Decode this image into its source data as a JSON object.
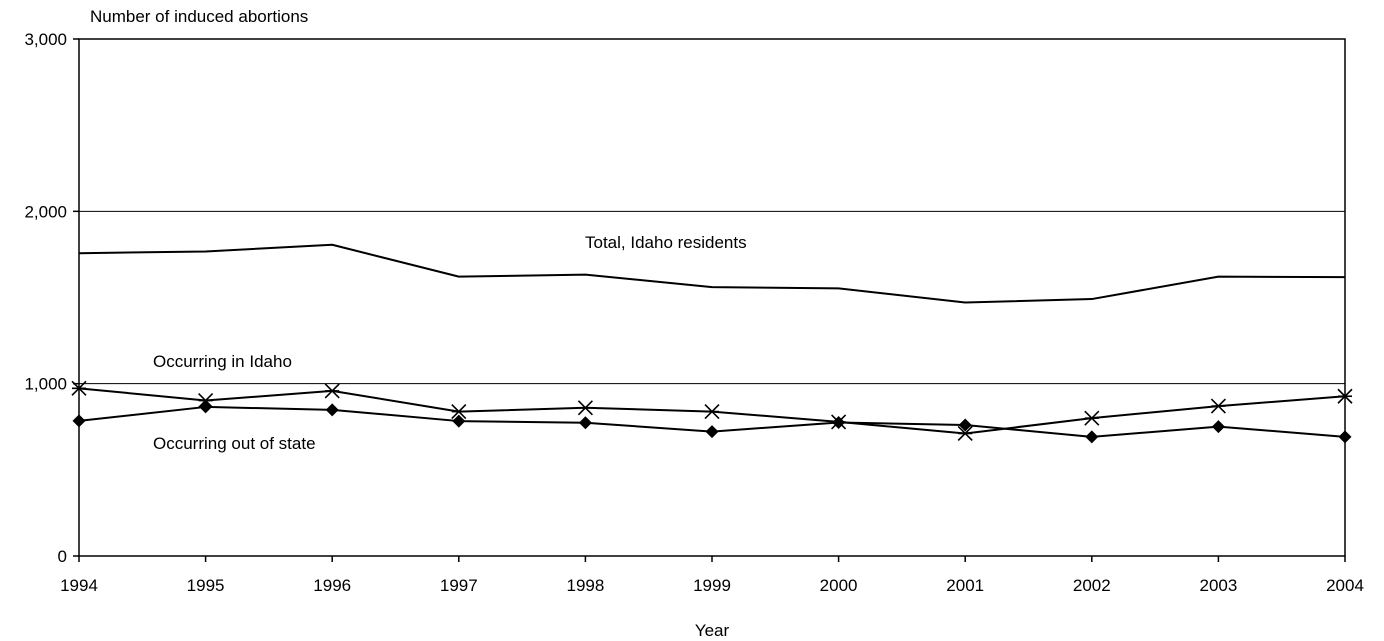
{
  "chart_data": {
    "type": "line",
    "title": "",
    "ylabel": "Number of induced abortions",
    "xlabel": "Year",
    "x": [
      "1994",
      "1995",
      "1996",
      "1997",
      "1998",
      "1999",
      "2000",
      "2001",
      "2002",
      "2003",
      "2004"
    ],
    "ylim": [
      0,
      3000
    ],
    "yticks": [
      0,
      1000,
      2000,
      3000
    ],
    "ytick_labels": [
      "0",
      "1,000",
      "2,000",
      "3,000"
    ],
    "grid": "horizontal at 1,000 and 2,000",
    "legend": "none; series labelled inline",
    "series": [
      {
        "name": "Total, Idaho residents",
        "marker": "none",
        "values": [
          1757,
          1767,
          1806,
          1621,
          1633,
          1560,
          1553,
          1471,
          1491,
          1621,
          1618
        ]
      },
      {
        "name": "Occurring in Idaho",
        "marker": "asterisk",
        "values": [
          973,
          902,
          958,
          838,
          860,
          838,
          778,
          711,
          800,
          870,
          927
        ]
      },
      {
        "name": "Occurring out of state",
        "marker": "diamond",
        "values": [
          784,
          865,
          848,
          783,
          773,
          722,
          775,
          760,
          691,
          751,
          691
        ]
      }
    ]
  }
}
